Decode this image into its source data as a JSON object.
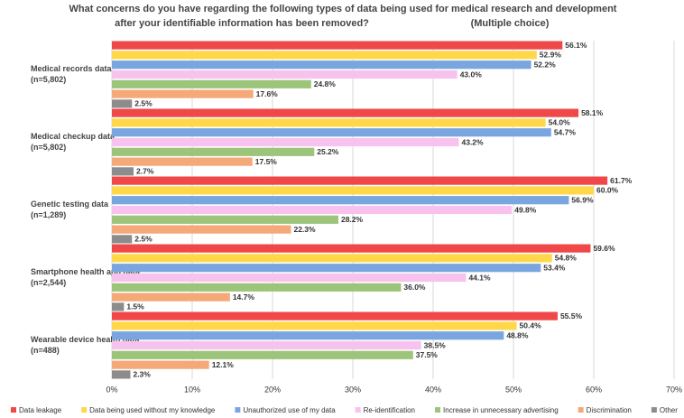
{
  "chart_data": {
    "type": "hbar-grouped",
    "title": [
      "What concerns do you have regarding the following types of data being used for medical research and development",
      "after your identifiable information has been removed?"
    ],
    "note": "(Multiple choice)",
    "categories": [
      "Medical records data",
      "Medical checkup data",
      "Genetic testing data",
      "Smartphone health app data",
      "Wearable device health data"
    ],
    "sample_sizes": [
      "(n=5,802)",
      "(n=5,802)",
      "(n=1,289)",
      "(n=2,544)",
      "(n=488)"
    ],
    "series": [
      {
        "name": "Data leakage",
        "color": "#f04848",
        "values": [
          56.1,
          58.1,
          61.7,
          59.6,
          55.5
        ],
        "value_labels": [
          "56.1%",
          "58.1%",
          "61.7%",
          "59.6%",
          "55.5%"
        ]
      },
      {
        "name": "Data being used without my knowledge",
        "color": "#ffd84a",
        "values": [
          52.9,
          54.0,
          60.0,
          54.8,
          50.4
        ],
        "value_labels": [
          "52.9%",
          "54.0%",
          "60.0%",
          "54.8%",
          "50.4%"
        ]
      },
      {
        "name": "Unauthorized use of my data",
        "color": "#7aa6e0",
        "values": [
          52.2,
          54.7,
          56.9,
          53.4,
          48.8
        ],
        "value_labels": [
          "52.2%",
          "54.7%",
          "56.9%",
          "53.4%",
          "48.8%"
        ]
      },
      {
        "name": "Re-identification",
        "color": "#f8c2ef",
        "values": [
          43.0,
          43.2,
          49.8,
          44.1,
          38.5
        ],
        "value_labels": [
          "43.0%",
          "43.2%",
          "49.8%",
          "44.1%",
          "38.5%"
        ]
      },
      {
        "name": "Increase in unnecessary advertising",
        "color": "#9cc47a",
        "values": [
          24.8,
          25.2,
          28.2,
          36.0,
          37.5
        ],
        "value_labels": [
          "24.8%",
          "25.2%",
          "28.2%",
          "36.0%",
          "37.5%"
        ]
      },
      {
        "name": "Discrimination",
        "color": "#f5a878",
        "values": [
          17.6,
          17.5,
          22.3,
          14.7,
          12.1
        ],
        "value_labels": [
          "17.6%",
          "17.5%",
          "22.3%",
          "14.7%",
          "12.1%"
        ]
      },
      {
        "name": "Other",
        "color": "#8c8c8c",
        "values": [
          2.5,
          2.7,
          2.5,
          1.5,
          2.3
        ],
        "value_labels": [
          "2.5%",
          "2.7%",
          "2.5%",
          "1.5%",
          "2.3%"
        ]
      }
    ],
    "xlim": [
      0,
      70
    ],
    "xticks": [
      {
        "value": 0,
        "label": "0%"
      },
      {
        "value": 10,
        "label": "10%"
      },
      {
        "value": 20,
        "label": "20%"
      },
      {
        "value": 30,
        "label": "30%"
      },
      {
        "value": 40,
        "label": "40%"
      },
      {
        "value": 50,
        "label": "50%"
      },
      {
        "value": 60,
        "label": "60%"
      },
      {
        "value": 70,
        "label": "70%"
      }
    ],
    "grid": true,
    "legend": "bottom"
  }
}
